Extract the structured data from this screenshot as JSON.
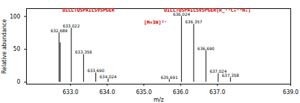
{
  "chart_data": {
    "type": "spectrum",
    "xlabel": "m/z",
    "ylabel": "Relative abundance",
    "xlim": [
      631.8,
      639.0
    ],
    "ylim": [
      -3,
      112
    ],
    "xticks": [
      {
        "value": 633.0,
        "label": "633.0"
      },
      {
        "value": 634.0,
        "label": "634.0"
      },
      {
        "value": 635.0,
        "label": "635.0"
      },
      {
        "value": 636.0,
        "label": "636.0"
      },
      {
        "value": 637.0,
        "label": "637.0"
      },
      {
        "value": 639.0,
        "label": "639.0"
      }
    ],
    "yticks": [
      0,
      50,
      100
    ],
    "series": [
      {
        "color": "#000000",
        "x": [
          632.689,
          632.72,
          633.022,
          633.356,
          633.69,
          634.024
        ],
        "values": [
          75,
          60,
          82,
          42,
          14,
          5
        ],
        "labels": [
          "632.689",
          null,
          "633.022",
          "633.356",
          "633.690",
          "634.024"
        ]
      },
      {
        "color": "#000000",
        "x": [
          635.691,
          636.024,
          636.357,
          636.69,
          637.024,
          637.358
        ],
        "values": [
          4,
          100,
          88,
          48,
          13,
          7
        ],
        "labels": [
          "635.691",
          "636.024",
          "636.357",
          "636.690",
          "637.024",
          "637.358"
        ]
      }
    ],
    "annotations": [
      {
        "text": "DILLTQSPAILSVSPGER",
        "x": 632.78,
        "y": 107,
        "color": "#cc0000"
      },
      {
        "text": "DILLTQSPAILSVSPGER[R_¹³C₆¹⁵N₄]",
        "x": 635.55,
        "y": 107,
        "color": "#cc0000"
      },
      {
        "text": "[M+3H]³⁺",
        "x": 635.0,
        "y": 88,
        "color": "#cc0000"
      }
    ]
  }
}
